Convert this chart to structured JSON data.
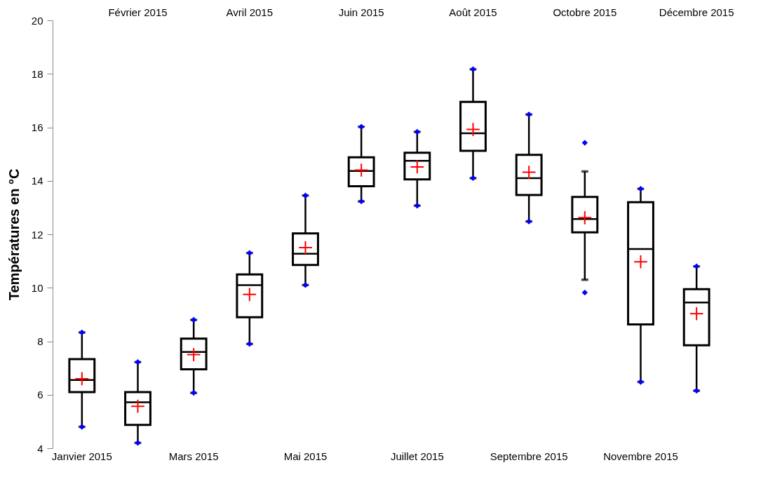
{
  "chart_data": {
    "type": "box",
    "ylabel": "Températures en °C",
    "ylim": [
      4,
      20
    ],
    "yticks": [
      4,
      6,
      8,
      10,
      12,
      14,
      16,
      18,
      20
    ],
    "marker": "diamond",
    "categories": [
      "Janvier 2015",
      "Février 2015",
      "Mars 2015",
      "Avril 2015",
      "Mai 2015",
      "Juin 2015",
      "Juillet 2015",
      "Août 2015",
      "Septembre 2015",
      "Octobre 2015",
      "Novembre 2015",
      "Décembre 2015"
    ],
    "series": [
      {
        "color": "#000000",
        "boxes": [
          {
            "low": 4.8,
            "q1": 6.1,
            "median": 6.55,
            "q3": 7.33,
            "high": 8.33,
            "mean": 6.6,
            "outliers": [
              4.8,
              8.33
            ]
          },
          {
            "low": 4.2,
            "q1": 4.87,
            "median": 5.72,
            "q3": 6.1,
            "high": 7.22,
            "mean": 5.57,
            "outliers": [
              4.2,
              7.22
            ]
          },
          {
            "low": 6.07,
            "q1": 6.95,
            "median": 7.6,
            "q3": 8.1,
            "high": 8.8,
            "mean": 7.5,
            "outliers": [
              6.07,
              8.8
            ]
          },
          {
            "low": 7.9,
            "q1": 8.9,
            "median": 10.1,
            "q3": 10.5,
            "high": 11.3,
            "mean": 9.75,
            "outliers": [
              7.9,
              11.3
            ]
          },
          {
            "low": 10.1,
            "q1": 10.85,
            "median": 11.27,
            "q3": 12.03,
            "high": 13.45,
            "mean": 11.5,
            "outliers": [
              10.1,
              13.45
            ]
          },
          {
            "low": 13.23,
            "q1": 13.8,
            "median": 14.37,
            "q3": 14.88,
            "high": 16.02,
            "mean": 14.4,
            "outliers": [
              13.23,
              16.02
            ]
          },
          {
            "low": 13.07,
            "q1": 14.05,
            "median": 14.75,
            "q3": 15.05,
            "high": 15.83,
            "mean": 14.52,
            "outliers": [
              13.07,
              15.83
            ]
          },
          {
            "low": 14.1,
            "q1": 15.12,
            "median": 15.78,
            "q3": 16.95,
            "high": 18.17,
            "mean": 15.92,
            "outliers": [
              14.1,
              18.17
            ]
          },
          {
            "low": 12.48,
            "q1": 13.47,
            "median": 14.1,
            "q3": 14.97,
            "high": 16.48,
            "mean": 14.32,
            "outliers": [
              12.48,
              16.48
            ]
          },
          {
            "low": 10.3,
            "q1": 12.07,
            "median": 12.57,
            "q3": 13.4,
            "high": 14.35,
            "mean": 12.62,
            "outliers": [
              9.82,
              15.42
            ]
          },
          {
            "low": 6.48,
            "q1": 8.63,
            "median": 11.45,
            "q3": 13.2,
            "high": 13.7,
            "mean": 10.97,
            "outliers": [
              6.48,
              13.7
            ]
          },
          {
            "low": 6.15,
            "q1": 7.85,
            "median": 9.45,
            "q3": 9.95,
            "high": 10.8,
            "mean": 9.03,
            "outliers": [
              6.15,
              10.8
            ]
          }
        ]
      }
    ]
  }
}
